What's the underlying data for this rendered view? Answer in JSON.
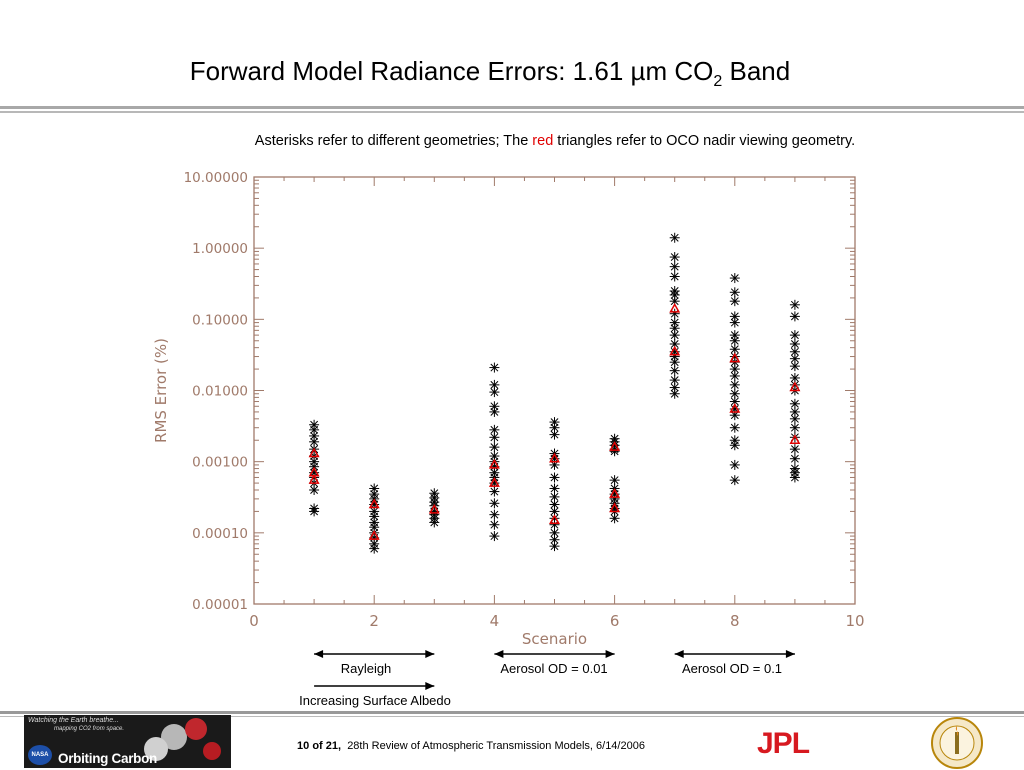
{
  "slide": {
    "title_main": "Forward Model Radiance Errors: 1.61 µm CO",
    "title_sub": "2",
    "title_end": " Band",
    "caption_pre": "Asterisks refer to different geometries; The ",
    "caption_red": "red",
    "caption_post": " triangles refer to OCO nadir viewing geometry."
  },
  "annotations": {
    "rayleigh": "Rayleigh",
    "aerosol_001": "Aerosol OD = 0.01",
    "aerosol_01": "Aerosol OD = 0.1",
    "albedo": "Increasing Surface Albedo"
  },
  "footer": {
    "page": "10",
    "of_word": "of",
    "total": "21,",
    "text": "28th Review of Atmospheric Transmission Models, 6/14/2006",
    "logo_tag1": "Watching the Earth breathe...",
    "logo_tag2": "mapping CO2 from space.",
    "logo_name": "Orbiting Carbon Observatory",
    "nasa": "NASA",
    "jpl": "JPL"
  },
  "colors": {
    "axis": "#a07a6a",
    "marker": "#000000",
    "nadir": "#e00000",
    "arrow": "#000000"
  },
  "chart_data": {
    "type": "scatter",
    "title": "",
    "xlabel": "Scenario",
    "ylabel": "RMS Error (%)",
    "xlim": [
      0,
      10
    ],
    "ylim": [
      1e-05,
      10
    ],
    "yscale": "log",
    "xticks": [
      "0",
      "2",
      "4",
      "6",
      "8",
      "10"
    ],
    "yticks": [
      "10.00000",
      "1.00000",
      "0.10000",
      "0.01000",
      "0.00100",
      "0.00010",
      "0.00001"
    ],
    "grid": false,
    "series": [
      {
        "marker": "asterisk",
        "points": [
          [
            1,
            0.0033
          ],
          [
            1,
            0.0028
          ],
          [
            1,
            0.0023
          ],
          [
            1,
            0.0019
          ],
          [
            1,
            0.0015
          ],
          [
            1,
            0.0012
          ],
          [
            1,
            0.001
          ],
          [
            1,
            0.00085
          ],
          [
            1,
            0.0007
          ],
          [
            1,
            0.0006
          ],
          [
            1,
            0.0005
          ],
          [
            1,
            0.0004
          ],
          [
            1,
            0.00022
          ],
          [
            1,
            0.0002
          ],
          [
            2,
            0.00042
          ],
          [
            2,
            0.00035
          ],
          [
            2,
            0.0003
          ],
          [
            2,
            0.00025
          ],
          [
            2,
            0.0002
          ],
          [
            2,
            0.00017
          ],
          [
            2,
            0.00014
          ],
          [
            2,
            0.00012
          ],
          [
            2,
            0.0001
          ],
          [
            2,
            8.5e-05
          ],
          [
            2,
            7e-05
          ],
          [
            2,
            6e-05
          ],
          [
            3,
            0.00036
          ],
          [
            3,
            0.00031
          ],
          [
            3,
            0.00027
          ],
          [
            3,
            0.00024
          ],
          [
            3,
            0.0002
          ],
          [
            3,
            0.00018
          ],
          [
            3,
            0.00016
          ],
          [
            3,
            0.00014
          ],
          [
            4,
            0.021
          ],
          [
            4,
            0.012
          ],
          [
            4,
            0.0095
          ],
          [
            4,
            0.006
          ],
          [
            4,
            0.005
          ],
          [
            4,
            0.0028
          ],
          [
            4,
            0.0022
          ],
          [
            4,
            0.0016
          ],
          [
            4,
            0.0012
          ],
          [
            4,
            0.001
          ],
          [
            4,
            0.00085
          ],
          [
            4,
            0.0007
          ],
          [
            4,
            0.0006
          ],
          [
            4,
            0.0005
          ],
          [
            4,
            0.00038
          ],
          [
            4,
            0.00026
          ],
          [
            4,
            0.00018
          ],
          [
            4,
            0.00013
          ],
          [
            4,
            9e-05
          ],
          [
            5,
            0.0036
          ],
          [
            5,
            0.003
          ],
          [
            5,
            0.0024
          ],
          [
            5,
            0.0013
          ],
          [
            5,
            0.0011
          ],
          [
            5,
            0.0009
          ],
          [
            5,
            0.0006
          ],
          [
            5,
            0.00042
          ],
          [
            5,
            0.00032
          ],
          [
            5,
            0.00025
          ],
          [
            5,
            0.0002
          ],
          [
            5,
            0.00016
          ],
          [
            5,
            0.00013
          ],
          [
            5,
            0.0001
          ],
          [
            5,
            8e-05
          ],
          [
            5,
            6.5e-05
          ],
          [
            6,
            0.0021
          ],
          [
            6,
            0.0019
          ],
          [
            6,
            0.0017
          ],
          [
            6,
            0.0015
          ],
          [
            6,
            0.0014
          ],
          [
            6,
            0.00055
          ],
          [
            6,
            0.00042
          ],
          [
            6,
            0.00035
          ],
          [
            6,
            0.0003
          ],
          [
            6,
            0.00026
          ],
          [
            6,
            0.00022
          ],
          [
            6,
            0.0002
          ],
          [
            6,
            0.00016
          ],
          [
            7,
            1.4
          ],
          [
            7,
            0.75
          ],
          [
            7,
            0.55
          ],
          [
            7,
            0.4
          ],
          [
            7,
            0.25
          ],
          [
            7,
            0.22
          ],
          [
            7,
            0.18
          ],
          [
            7,
            0.12
          ],
          [
            7,
            0.09
          ],
          [
            7,
            0.075
          ],
          [
            7,
            0.06
          ],
          [
            7,
            0.045
          ],
          [
            7,
            0.035
          ],
          [
            7,
            0.03
          ],
          [
            7,
            0.025
          ],
          [
            7,
            0.019
          ],
          [
            7,
            0.014
          ],
          [
            7,
            0.011
          ],
          [
            7,
            0.009
          ],
          [
            8,
            0.38
          ],
          [
            8,
            0.24
          ],
          [
            8,
            0.18
          ],
          [
            8,
            0.11
          ],
          [
            8,
            0.09
          ],
          [
            8,
            0.06
          ],
          [
            8,
            0.05
          ],
          [
            8,
            0.038
          ],
          [
            8,
            0.03
          ],
          [
            8,
            0.025
          ],
          [
            8,
            0.02
          ],
          [
            8,
            0.016
          ],
          [
            8,
            0.012
          ],
          [
            8,
            0.009
          ],
          [
            8,
            0.007
          ],
          [
            8,
            0.0055
          ],
          [
            8,
            0.0045
          ],
          [
            8,
            0.003
          ],
          [
            8,
            0.002
          ],
          [
            8,
            0.0017
          ],
          [
            8,
            0.0009
          ],
          [
            8,
            0.00055
          ],
          [
            9,
            0.16
          ],
          [
            9,
            0.11
          ],
          [
            9,
            0.06
          ],
          [
            9,
            0.045
          ],
          [
            9,
            0.035
          ],
          [
            9,
            0.028
          ],
          [
            9,
            0.022
          ],
          [
            9,
            0.015
          ],
          [
            9,
            0.012
          ],
          [
            9,
            0.01
          ],
          [
            9,
            0.0065
          ],
          [
            9,
            0.005
          ],
          [
            9,
            0.004
          ],
          [
            9,
            0.003
          ],
          [
            9,
            0.0022
          ],
          [
            9,
            0.0015
          ],
          [
            9,
            0.0011
          ],
          [
            9,
            0.0008
          ],
          [
            9,
            0.0007
          ],
          [
            9,
            0.0006
          ]
        ]
      },
      {
        "marker": "triangle",
        "points": [
          [
            1,
            0.0013
          ],
          [
            1,
            0.0007
          ],
          [
            1,
            0.00055
          ],
          [
            2,
            0.00025
          ],
          [
            2,
            9e-05
          ],
          [
            3,
            0.00021
          ],
          [
            4,
            0.0009
          ],
          [
            4,
            0.0005
          ],
          [
            5,
            0.0011
          ],
          [
            5,
            0.00015
          ],
          [
            6,
            0.0016
          ],
          [
            6,
            0.00035
          ],
          [
            6,
            0.00022
          ],
          [
            7,
            0.14
          ],
          [
            7,
            0.035
          ],
          [
            8,
            0.028
          ],
          [
            8,
            0.0055
          ],
          [
            9,
            0.011
          ],
          [
            9,
            0.002
          ]
        ]
      }
    ]
  }
}
